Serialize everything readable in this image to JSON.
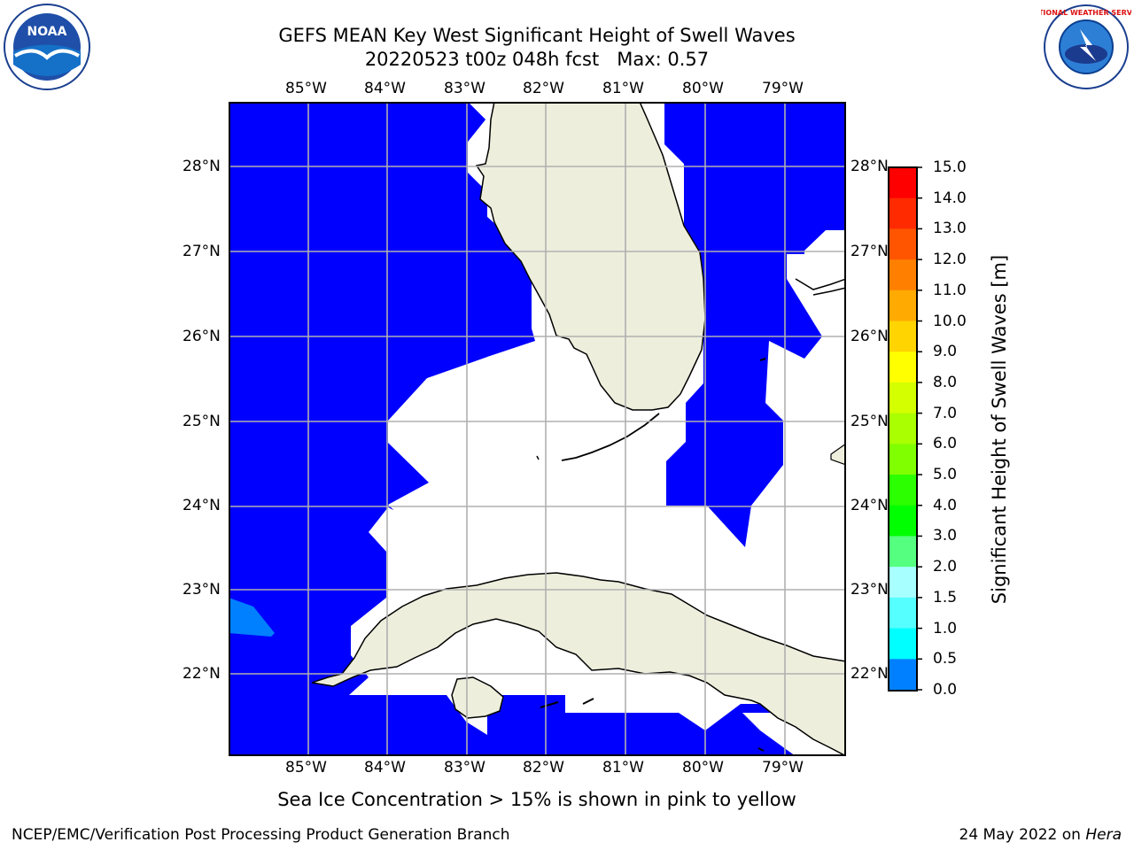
{
  "header": {
    "title_line1": "GEFS MEAN Key West Significant Height of Swell Waves",
    "title_line2": "20220523 t00z 048h fcst   Max: 0.57",
    "noaa_logo_text": "NOAA",
    "nws_logo_text": "NATIONAL WEATHER SERVICE"
  },
  "map": {
    "lon_labels": [
      "85°W",
      "84°W",
      "83°W",
      "82°W",
      "81°W",
      "80°W",
      "79°W"
    ],
    "lat_labels": [
      "28°N",
      "27°N",
      "26°N",
      "25°N",
      "24°N",
      "23°N",
      "22°N"
    ],
    "colors": {
      "ocean_fill": "#0000ff",
      "swell_0_5_1": "#0080ff",
      "land": "#eeeedd",
      "grid": "#b0b0b0"
    }
  },
  "colorbar": {
    "title": "Significant Height of Swell Waves [m]",
    "ticks": [
      "15.0",
      "14.0",
      "13.0",
      "12.0",
      "11.0",
      "10.0",
      "9.0",
      "8.0",
      "7.0",
      "6.0",
      "5.0",
      "4.0",
      "3.0",
      "2.0",
      "1.5",
      "1.0",
      "0.5",
      "0.0"
    ],
    "colors": [
      "#ff0000",
      "#ff2a00",
      "#ff5500",
      "#ff8000",
      "#ffaa00",
      "#ffd400",
      "#ffff00",
      "#d4ff00",
      "#aaff00",
      "#80ff00",
      "#2bff00",
      "#00ff00",
      "#55ff80",
      "#a8ffff",
      "#55ffff",
      "#00ffff",
      "#0080ff",
      "#0000ff"
    ]
  },
  "footer": {
    "note": "Sea Ice Concentration > 15% is shown in pink to yellow",
    "credits": "NCEP/EMC/Verification Post Processing Product Generation Branch",
    "date": "24 May 2022 on",
    "host": "Hera"
  }
}
